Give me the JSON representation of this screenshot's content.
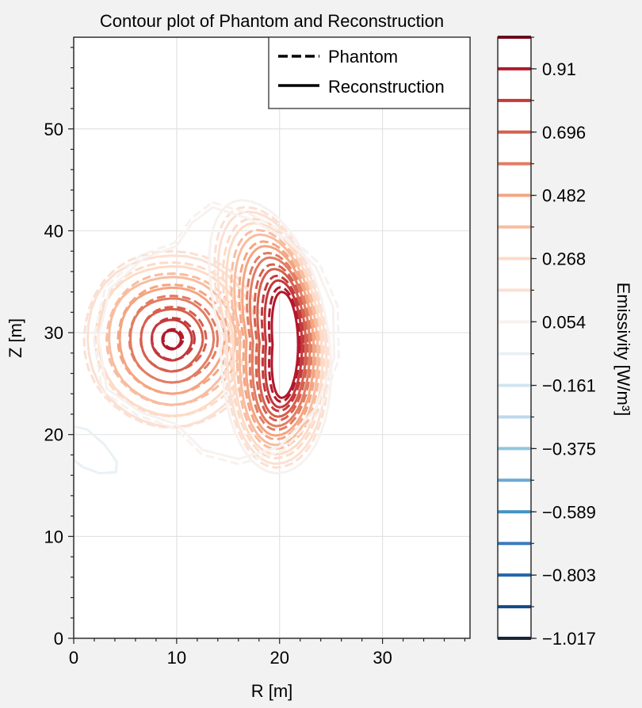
{
  "chart_data": {
    "type": "contour",
    "title": "Contour plot of Phantom and Reconstruction",
    "xlabel": "R [m]",
    "ylabel": "Z [m]",
    "xlim": [
      0,
      38.5
    ],
    "ylim": [
      0,
      59
    ],
    "x_ticks": [
      0,
      10,
      20,
      30
    ],
    "y_ticks": [
      0,
      10,
      20,
      30,
      40,
      50
    ],
    "grid": true,
    "legend": {
      "placement": "top-right",
      "entries": [
        {
          "label": "Phantom",
          "style": "dashed"
        },
        {
          "label": "Reconstruction",
          "style": "solid"
        }
      ]
    },
    "colorbar": {
      "label": "Emissivity [W/m³]",
      "min": -1.017,
      "max": 1.017,
      "tick_labels": [
        "0.91",
        "0.696",
        "0.482",
        "0.268",
        "0.054",
        "−0.161",
        "−0.375",
        "−0.589",
        "−0.803",
        "−1.017"
      ],
      "tick_values": [
        0.91,
        0.696,
        0.482,
        0.268,
        0.054,
        -0.161,
        -0.375,
        -0.589,
        -0.803,
        -1.017
      ],
      "levels": [
        -1.017,
        -0.91,
        -0.803,
        -0.696,
        -0.589,
        -0.482,
        -0.375,
        -0.268,
        -0.161,
        -0.054,
        0.054,
        0.161,
        0.268,
        0.375,
        0.482,
        0.589,
        0.696,
        0.803,
        0.91,
        1.017
      ],
      "colors": [
        "#0a2a55",
        "#124b8a",
        "#2166ac",
        "#3a7dbd",
        "#4393c3",
        "#6aaad2",
        "#92c5de",
        "#bcd9ea",
        "#d1e5f0",
        "#eaf1f5",
        "#f7f2ef",
        "#fbe0d3",
        "#fddbc7",
        "#f8bda0",
        "#f4a582",
        "#e27d63",
        "#d6604d",
        "#c3393c",
        "#b2182b",
        "#8a0c22"
      ]
    },
    "features": [
      {
        "name": "left-blob",
        "center": [
          9.5,
          29.3
        ],
        "semi_axes": [
          1,
          1.05
        ],
        "levels": [
          0.91,
          0.803,
          0.696,
          0.589,
          0.482,
          0.375,
          0.268,
          0.161
        ]
      },
      {
        "name": "right-crescent",
        "levels": [
          0.91,
          0.803,
          0.696,
          0.589,
          0.482,
          0.375,
          0.268,
          0.161,
          0.054
        ]
      },
      {
        "name": "negative-lobe",
        "level": -0.054
      }
    ]
  }
}
